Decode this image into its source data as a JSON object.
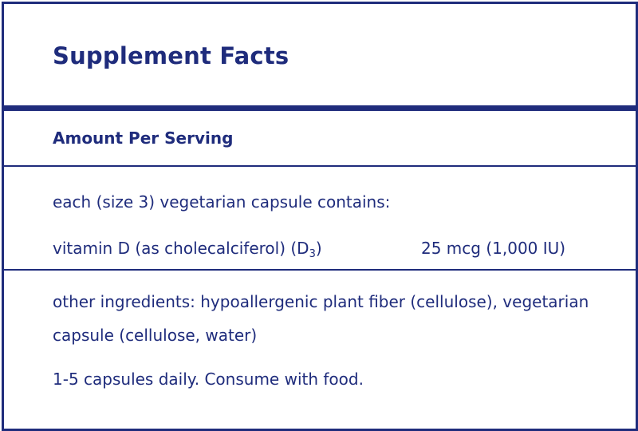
{
  "label": {
    "title": "Supplement Facts",
    "amount_heading": "Amount Per Serving",
    "serving_description": "each (size 3) vegetarian capsule contains:",
    "nutrients": [
      {
        "name": "vitamin D (as cholecalciferol) (D",
        "subscript": "3",
        "name_suffix": ")",
        "amount": "25 mcg (1,000 IU)"
      }
    ],
    "other_ingredients": "other ingredients: hypoallergenic plant fiber (cellulose), vegetarian capsule (cellulose, water)",
    "directions": "1-5 capsules daily. Consume with food."
  },
  "colors": {
    "text": "#1f2c7c",
    "border": "#1f2c7c",
    "background": "#ffffff"
  }
}
